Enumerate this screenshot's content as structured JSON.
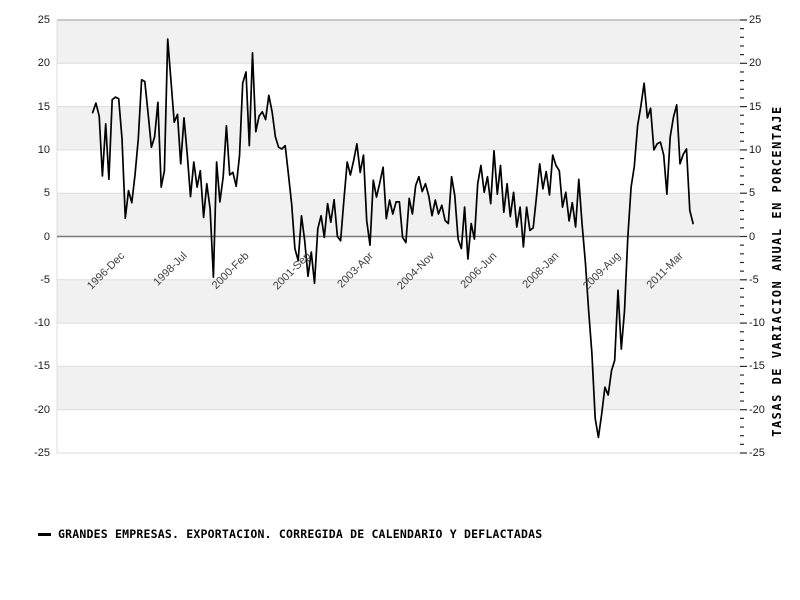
{
  "chart_data": {
    "type": "line",
    "title": "",
    "ylabel_right": "TASAS DE VARIACION ANUAL EN PORCENTAJE",
    "ylim": [
      -25,
      25
    ],
    "y_major_step": 5,
    "y_minor_step": 1,
    "y_ticks": [
      25,
      20,
      15,
      10,
      5,
      0,
      -5,
      -10,
      -15,
      -20,
      -25
    ],
    "x_ticks": [
      {
        "label": "1996-Dec",
        "month_index": 9
      },
      {
        "label": "1998-Jul",
        "month_index": 28
      },
      {
        "label": "2000-Feb",
        "month_index": 47
      },
      {
        "label": "2001-Sep",
        "month_index": 66
      },
      {
        "label": "2003-Apr",
        "month_index": 85
      },
      {
        "label": "2004-Nov",
        "month_index": 104
      },
      {
        "label": "2006-Jun",
        "month_index": 123
      },
      {
        "label": "2008-Jan",
        "month_index": 142
      },
      {
        "label": "2009-Aug",
        "month_index": 161
      },
      {
        "label": "2011-Mar",
        "month_index": 180
      }
    ],
    "grid": "horizontal-bands-alternating",
    "legend_position": "bottom-left",
    "colors": {
      "line": "#000000",
      "band_gray": "#f1f1f1",
      "band_white": "#ffffff",
      "grid_line": "#dcdcdc",
      "zero_line": "#7a7a7a",
      "top_border": "#9a9a9a",
      "axis_text": "#1a1a1a",
      "x_tick_text": "#404040",
      "tick_mark": "#2a2a2a"
    },
    "series": [
      {
        "name": "GRANDES EMPRESAS. EXPORTACION. CORREGIDA DE CALENDARIO Y DEFLACTADAS",
        "frequency": "monthly",
        "start_month": "1996-03",
        "end_month": "2011-07",
        "values": [
          14.3,
          15.4,
          13.9,
          7.0,
          13.0,
          6.6,
          15.8,
          16.1,
          15.9,
          11.3,
          2.1,
          5.3,
          3.9,
          7.2,
          11.3,
          18.1,
          17.9,
          14.2,
          10.3,
          11.5,
          15.5,
          5.7,
          7.6,
          22.8,
          18.1,
          13.2,
          14.1,
          8.4,
          13.7,
          9.4,
          4.6,
          8.6,
          5.7,
          7.6,
          2.2,
          6.1,
          3.2,
          -4.7,
          8.6,
          4.0,
          6.9,
          12.8,
          7.1,
          7.4,
          5.8,
          9.3,
          17.7,
          19.0,
          10.5,
          21.2,
          12.1,
          13.9,
          14.4,
          13.5,
          16.3,
          14.4,
          11.5,
          10.3,
          10.1,
          10.5,
          7.2,
          3.7,
          -1.4,
          -2.8,
          2.4,
          -0.5,
          -4.6,
          -1.8,
          -5.4,
          0.9,
          2.4,
          -0.1,
          3.8,
          1.65,
          4.25,
          0.0,
          -0.5,
          4.2,
          8.6,
          7.1,
          8.8,
          10.7,
          7.4,
          9.4,
          1.85,
          -1.0,
          6.5,
          4.55,
          6.2,
          8.0,
          2.05,
          4.2,
          2.6,
          4.0,
          4.0,
          -0.1,
          -0.7,
          4.4,
          2.6,
          5.9,
          6.9,
          5.2,
          6.1,
          4.7,
          2.4,
          4.2,
          2.6,
          3.6,
          1.85,
          1.5,
          6.9,
          4.7,
          -0.3,
          -1.4,
          3.4,
          -2.6,
          1.5,
          -0.3,
          6.1,
          8.2,
          5.1,
          6.9,
          3.8,
          9.9,
          4.9,
          8.2,
          2.8,
          6.1,
          2.3,
          5.1,
          1.1,
          3.4,
          -1.2,
          3.4,
          0.7,
          1.0,
          4.5,
          8.4,
          5.5,
          7.5,
          4.8,
          9.4,
          8.2,
          7.6,
          3.4,
          5.1,
          1.8,
          3.9,
          1.1,
          6.6,
          1.4,
          -3.0,
          -8.5,
          -13.5,
          -21.0,
          -23.2,
          -20.5,
          -17.4,
          -18.3,
          -15.5,
          -14.3,
          -6.2,
          -13.0,
          -8.6,
          -0.1,
          5.7,
          8.1,
          12.8,
          15.0,
          17.7,
          13.7,
          14.8,
          10.0,
          10.7,
          10.9,
          9.4,
          4.9,
          11.5,
          13.8,
          15.2,
          8.4,
          9.5,
          10.1,
          3.0,
          1.5
        ]
      }
    ]
  },
  "legend": {
    "label": "GRANDES EMPRESAS. EXPORTACION. CORREGIDA DE CALENDARIO Y DEFLACTADAS"
  }
}
